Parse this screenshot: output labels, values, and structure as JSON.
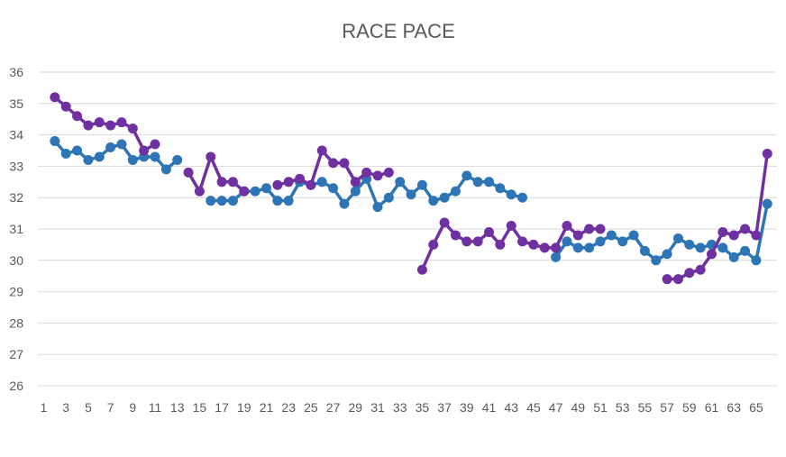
{
  "chart_data": {
    "type": "line",
    "title": "RACE PACE",
    "xlabel": "",
    "ylabel": "",
    "ylim": [
      26,
      36
    ],
    "yticks": [
      26,
      27,
      28,
      29,
      30,
      31,
      32,
      33,
      34,
      35,
      36
    ],
    "xlim": [
      1,
      66
    ],
    "xticks": [
      1,
      3,
      5,
      7,
      9,
      11,
      13,
      15,
      17,
      19,
      21,
      23,
      25,
      27,
      29,
      31,
      33,
      35,
      37,
      39,
      41,
      43,
      45,
      47,
      49,
      51,
      53,
      55,
      57,
      59,
      61,
      63,
      65
    ],
    "grid": true,
    "legend": "none",
    "series": [
      {
        "color": "#2e75b6",
        "values": [
          null,
          33.8,
          33.4,
          33.5,
          33.2,
          33.3,
          33.6,
          33.7,
          33.2,
          33.3,
          33.3,
          32.9,
          33.2,
          null,
          null,
          31.9,
          31.9,
          31.9,
          32.2,
          32.2,
          32.3,
          31.9,
          31.9,
          32.5,
          32.4,
          32.5,
          32.3,
          31.8,
          32.2,
          32.6,
          31.7,
          32.0,
          32.5,
          32.1,
          32.4,
          31.9,
          32.0,
          32.2,
          32.7,
          32.5,
          32.5,
          32.3,
          32.1,
          32.0,
          null,
          null,
          30.1,
          30.6,
          30.4,
          30.4,
          30.6,
          30.8,
          30.6,
          30.8,
          30.3,
          30.0,
          30.2,
          30.7,
          30.5,
          30.4,
          30.5,
          30.4,
          30.1,
          30.3,
          30.0,
          31.8
        ]
      },
      {
        "color": "#7030a0",
        "values": [
          null,
          35.2,
          34.9,
          34.6,
          34.3,
          34.4,
          34.3,
          34.4,
          34.2,
          33.5,
          33.7,
          null,
          null,
          32.8,
          32.2,
          33.3,
          32.5,
          32.5,
          32.2,
          null,
          null,
          32.4,
          32.5,
          32.6,
          32.4,
          33.5,
          33.1,
          33.1,
          32.5,
          32.8,
          32.7,
          32.8,
          null,
          null,
          29.7,
          30.5,
          31.2,
          30.8,
          30.6,
          30.6,
          30.9,
          30.5,
          31.1,
          30.6,
          30.5,
          30.4,
          30.4,
          31.1,
          30.8,
          31.0,
          31.0,
          null,
          null,
          null,
          null,
          null,
          29.4,
          29.4,
          29.6,
          29.7,
          30.2,
          30.9,
          30.8,
          31.0,
          30.8,
          33.4
        ]
      }
    ]
  }
}
